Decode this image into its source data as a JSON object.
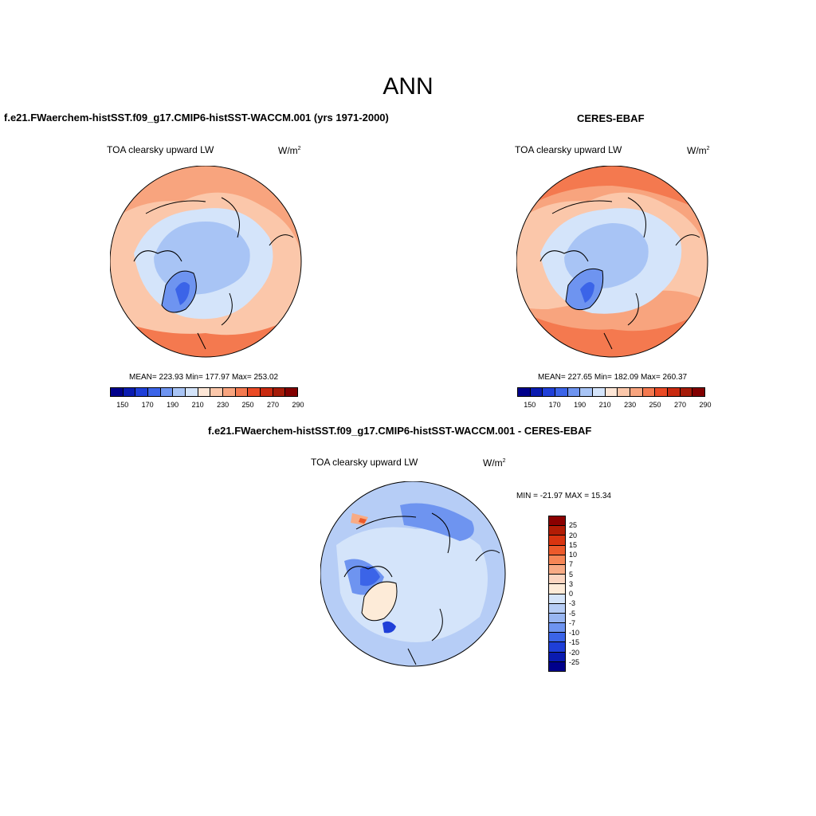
{
  "figure": {
    "title": "ANN"
  },
  "panels": [
    {
      "title": "f.e21.FWaerchem-histSST.f09_g17.CMIP6-histSST-WACCM.001 (yrs 1971-2000)",
      "variable": "TOA clearsky upward LW",
      "units_base": "W/m",
      "units_exp": "2",
      "stats": "MEAN= 223.93  Min= 177.97  Max= 253.02",
      "colorbar_ticks": [
        "150",
        "170",
        "190",
        "210",
        "230",
        "250",
        "270",
        "290"
      ]
    },
    {
      "title": "CERES-EBAF",
      "variable": "TOA clearsky upward LW",
      "units_base": "W/m",
      "units_exp": "2",
      "stats": "MEAN= 227.65  Min= 182.09  Max= 260.37",
      "colorbar_ticks": [
        "150",
        "170",
        "190",
        "210",
        "230",
        "250",
        "270",
        "290"
      ]
    },
    {
      "title": "f.e21.FWaerchem-histSST.f09_g17.CMIP6-histSST-WACCM.001 - CERES-EBAF",
      "variable": "TOA clearsky upward LW",
      "units_base": "W/m",
      "units_exp": "2",
      "stats": "MIN = -21.97 MAX =  15.34",
      "colorbar_ticks": [
        "25",
        "20",
        "15",
        "10",
        "7",
        "5",
        "3",
        "0",
        "-3",
        "-5",
        "-7",
        "-10",
        "-15",
        "-20",
        "-25"
      ]
    }
  ],
  "colors": {
    "abs_scale": [
      "#00008b",
      "#0a1bb0",
      "#1f3fd8",
      "#3b64e8",
      "#6e94f0",
      "#a8c4f5",
      "#d4e4fa",
      "#fde6d6",
      "#fbc7aa",
      "#f8a47e",
      "#f4794f",
      "#ea4a25",
      "#c92a10",
      "#a51b08",
      "#820000"
    ],
    "diff_scale": [
      "#8b0000",
      "#b21c05",
      "#d83410",
      "#ec5a2b",
      "#f68656",
      "#f8ab85",
      "#fbd5c0",
      "#fdebd8",
      "#d4e4fa",
      "#b6cdf6",
      "#98b6f2",
      "#6e94f0",
      "#3b64e8",
      "#1f3fd8",
      "#0a1bb0",
      "#00008b"
    ]
  }
}
